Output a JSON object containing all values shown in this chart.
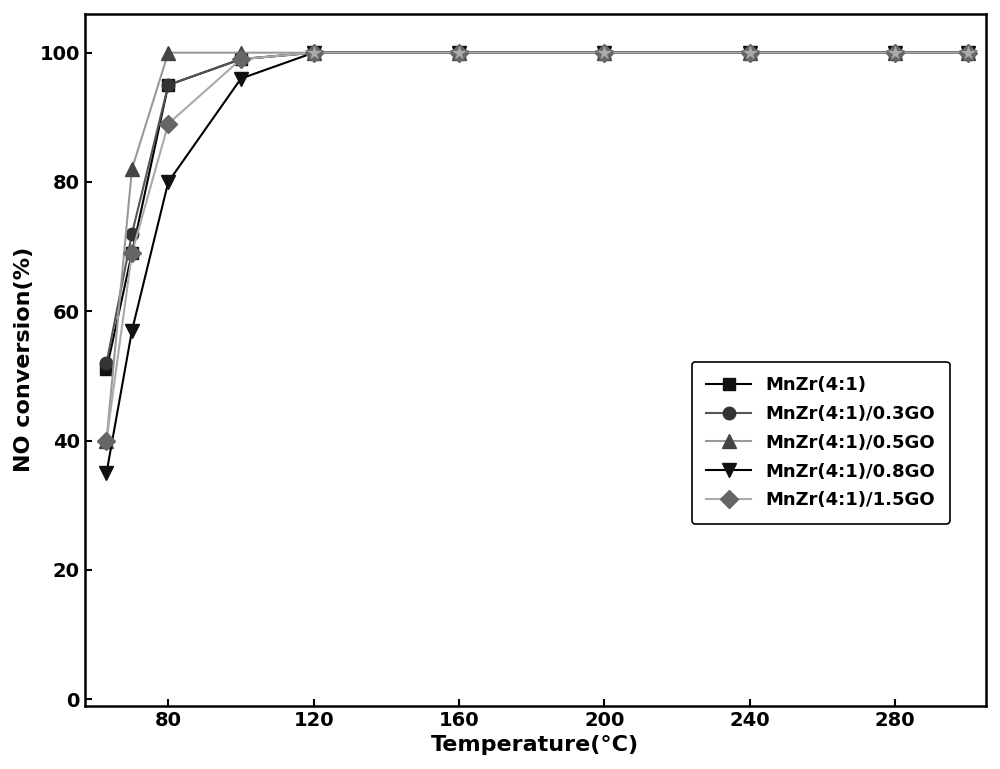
{
  "series": [
    {
      "label": "MnZr(4:1)",
      "line_color": "#000000",
      "marker_color": "#111111",
      "marker": "s",
      "markersize": 9,
      "x": [
        63,
        70,
        80,
        100,
        120,
        160,
        200,
        240,
        280,
        300
      ],
      "y": [
        51,
        69,
        95,
        99,
        100,
        100,
        100,
        100,
        100,
        100
      ]
    },
    {
      "label": "MnZr(4:1)/0.3GO",
      "line_color": "#555555",
      "marker_color": "#333333",
      "marker": "o",
      "markersize": 9,
      "x": [
        63,
        70,
        80,
        100,
        120,
        160,
        200,
        240,
        280,
        300
      ],
      "y": [
        52,
        72,
        95,
        99,
        100,
        100,
        100,
        100,
        100,
        100
      ]
    },
    {
      "label": "MnZr(4:1)/0.5GO",
      "line_color": "#999999",
      "marker_color": "#444444",
      "marker": "^",
      "markersize": 10,
      "x": [
        63,
        70,
        80,
        100,
        120,
        160,
        200,
        240,
        280,
        300
      ],
      "y": [
        40,
        82,
        100,
        100,
        100,
        100,
        100,
        100,
        100,
        100
      ]
    },
    {
      "label": "MnZr(4:1)/0.8GO",
      "line_color": "#000000",
      "marker_color": "#111111",
      "marker": "v",
      "markersize": 10,
      "x": [
        63,
        70,
        80,
        100,
        120,
        160,
        200,
        240,
        280,
        300
      ],
      "y": [
        35,
        57,
        80,
        96,
        100,
        100,
        100,
        100,
        100,
        100
      ]
    },
    {
      "label": "MnZr(4:1)/1.5GO",
      "line_color": "#aaaaaa",
      "marker_color": "#666666",
      "marker": "D",
      "markersize": 9,
      "x": [
        63,
        70,
        80,
        100,
        120,
        160,
        200,
        240,
        280,
        300
      ],
      "y": [
        40,
        69,
        89,
        99,
        100,
        100,
        100,
        100,
        100,
        100
      ]
    }
  ],
  "star_x": [
    120,
    160,
    200,
    240,
    280,
    300
  ],
  "star_y": [
    100,
    100,
    100,
    100,
    100,
    100
  ],
  "star_color": "#aaaaaa",
  "star_edge_color": "#666666",
  "star_size": 13,
  "xlabel": "Temperature(°C)",
  "ylabel": "NO conversion(%)",
  "xlim": [
    57,
    305
  ],
  "ylim": [
    -1,
    106
  ],
  "xticks": [
    80,
    120,
    160,
    200,
    240,
    280
  ],
  "yticks": [
    0,
    20,
    40,
    60,
    80,
    100
  ],
  "fontsize_axis_label": 16,
  "fontsize_tick": 14,
  "fontsize_legend": 13,
  "linewidth": 1.5,
  "figure_width": 10.0,
  "figure_height": 7.69
}
